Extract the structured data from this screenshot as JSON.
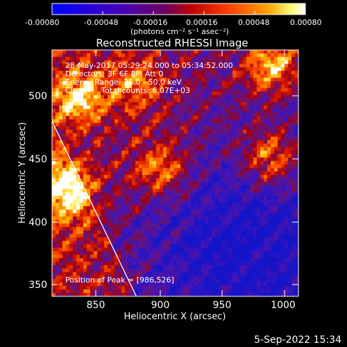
{
  "colorbar": {
    "ticks": [
      "-0.00080",
      "-0.00048",
      "-0.00016",
      "0.00016",
      "0.00048",
      "0.00080"
    ],
    "unit_label": "(photons cm⁻² s⁻¹ asec⁻²)"
  },
  "plot": {
    "title": "Reconstructed RHESSI Image",
    "xlabel": "Heliocentric X (arcsec)",
    "ylabel": "Heliocentric Y (arcsec)",
    "xticks": [
      "850",
      "900",
      "950",
      "1000"
    ],
    "yticks": [
      "500",
      "450",
      "400",
      "350"
    ],
    "info_lines": [
      "28-May-2017 05:29:24.000 to 05:34:52.000",
      "Detectors: 3F 6F 8F, Att 0",
      "Energy Range: 25.0 - 50.0 keV",
      "Clean      Total counts: 6.07E+03"
    ],
    "peak_label": "Position of Peak = [986,526]"
  },
  "footer": {
    "date": "5-Sep-2022 15:34"
  },
  "chart_data": {
    "type": "heatmap",
    "title": "Reconstructed RHESSI Image",
    "xlabel": "Heliocentric X (arcsec)",
    "ylabel": "Heliocentric Y (arcsec)",
    "xlim": [
      815,
      1005
    ],
    "ylim": [
      342,
      532
    ],
    "colorbar_range": [
      -0.0008,
      0.0008
    ],
    "colormap": "blue-purple-red-yellow-white",
    "hot_regions": [
      {
        "x": 835,
        "y": 495,
        "level": 0.9
      },
      {
        "x": 828,
        "y": 425,
        "level": 0.95
      },
      {
        "x": 900,
        "y": 440,
        "level": 0.75
      },
      {
        "x": 983,
        "y": 448,
        "level": 0.9
      },
      {
        "x": 985,
        "y": 520,
        "level": 1.0
      },
      {
        "x": 880,
        "y": 505,
        "level": 0.6
      }
    ],
    "limb": [
      {
        "x": 815,
        "y": 477
      },
      {
        "x": 880,
        "y": 342
      }
    ],
    "peak": {
      "x": 986,
      "y": 526
    }
  }
}
